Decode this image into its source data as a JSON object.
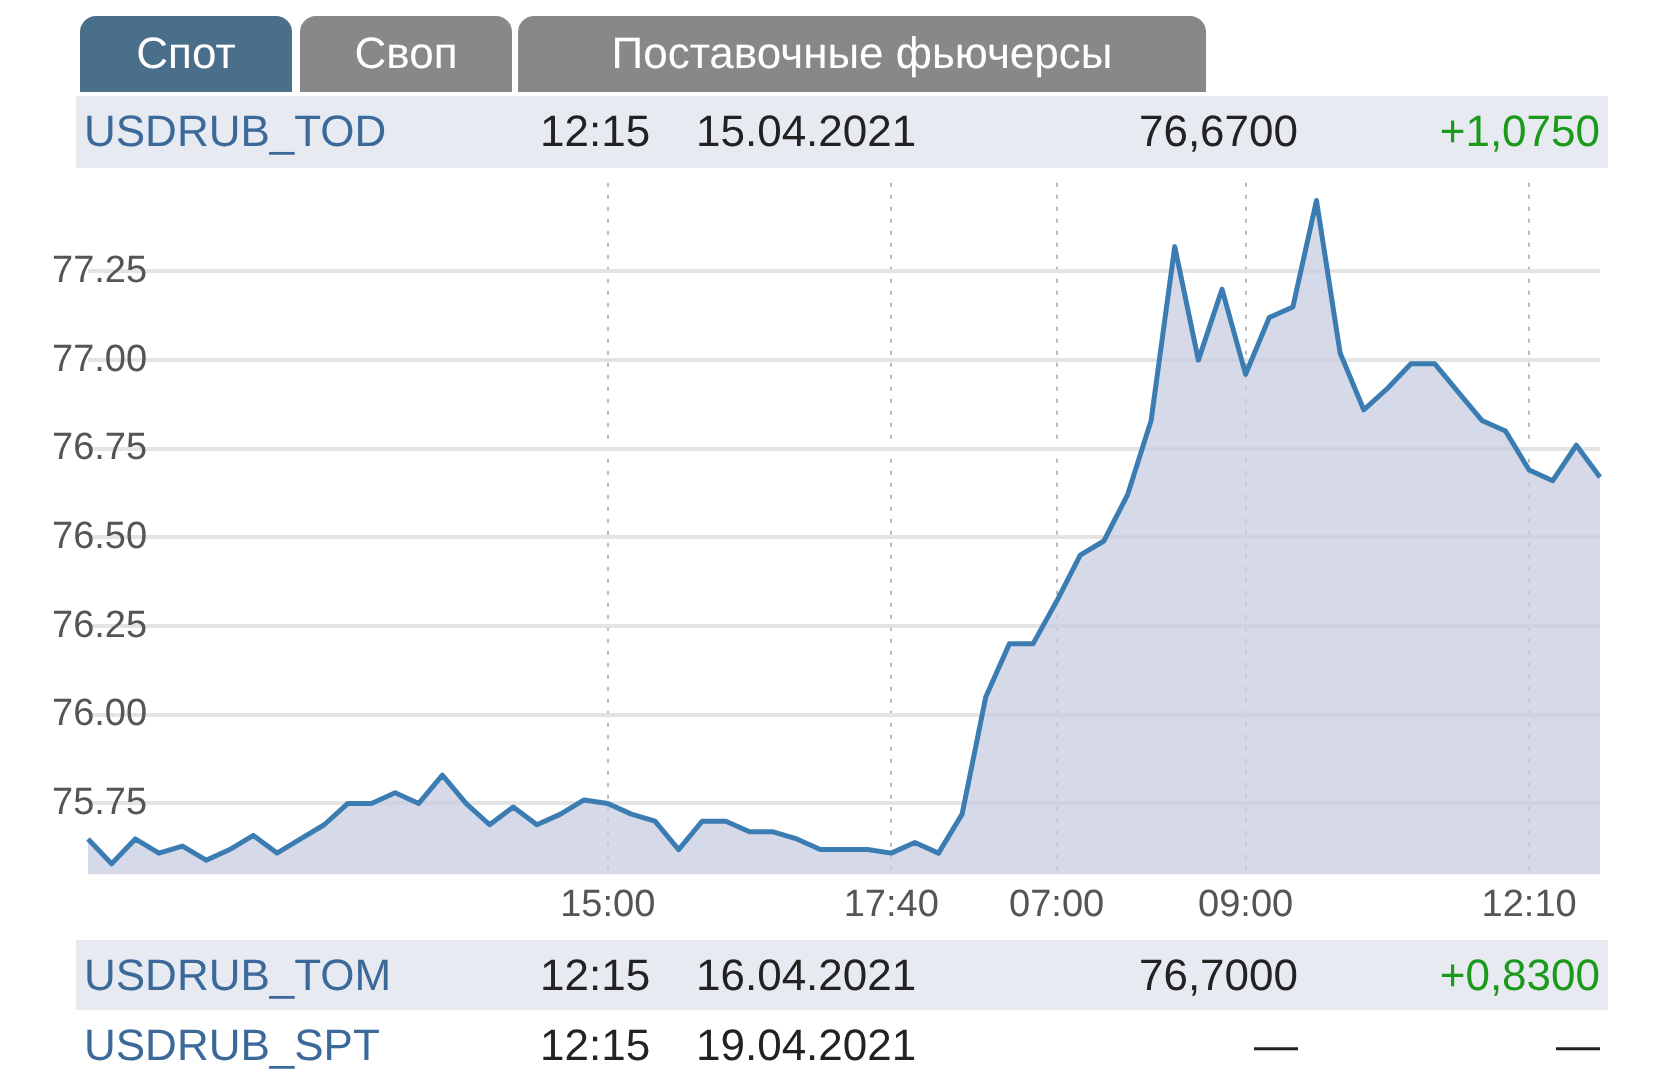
{
  "chart_data": {
    "type": "area",
    "annotations": [
      "Спот",
      "Своп",
      "Поставочные фьючерсы",
      "USDRUB_TOD",
      "12:15",
      "15.04.2021",
      "76,6700",
      "+1,0750",
      "USDRUB_TOM",
      "12:15",
      "16.04.2021",
      "76,7000",
      "+0,8300",
      "USDRUB_SPT",
      "12:15",
      "19.04.2021",
      "—",
      "—"
    ],
    "categories": [
      null,
      null,
      null,
      null,
      null,
      null,
      null,
      null,
      null,
      null,
      null,
      null,
      null,
      null,
      null,
      null,
      null,
      null,
      null,
      null,
      null,
      null,
      "15:00",
      null,
      null,
      null,
      null,
      null,
      null,
      null,
      null,
      null,
      null,
      null,
      "17:40",
      null,
      null,
      null,
      null,
      null,
      null,
      "07:00",
      null,
      null,
      null,
      null,
      null,
      null,
      null,
      "09:00",
      null,
      null,
      null,
      null,
      null,
      null,
      null,
      null,
      null,
      null,
      null,
      "12:10",
      null,
      null,
      null
    ],
    "series": [
      {
        "color": "#3b7db3",
        "values": [
          75.65,
          75.58,
          75.65,
          75.61,
          75.63,
          75.59,
          75.62,
          75.66,
          75.61,
          75.65,
          75.69,
          75.75,
          75.75,
          75.78,
          75.75,
          75.83,
          75.75,
          75.69,
          75.74,
          75.69,
          75.72,
          75.76,
          75.75,
          75.72,
          75.7,
          75.62,
          75.7,
          75.7,
          75.67,
          75.67,
          75.65,
          75.62,
          75.62,
          75.62,
          75.61,
          75.64,
          75.61,
          75.72,
          76.05,
          76.2,
          76.2,
          76.32,
          76.45,
          76.49,
          76.62,
          76.83,
          77.32,
          77.0,
          77.2,
          76.96,
          77.12,
          77.15,
          77.45,
          77.02,
          76.86,
          76.92,
          76.99,
          76.99,
          76.91,
          76.83,
          76.8,
          76.69,
          76.66,
          76.76,
          76.67
        ]
      }
    ],
    "ylim": [
      75.55,
      77.5
    ],
    "yticks": [
      75.75,
      {
        "value": 76,
        "label": "76.00"
      },
      76.25,
      {
        "value": 76.5,
        "label": "76.50"
      },
      76.75,
      {
        "value": 77,
        "label": "77.00"
      },
      77.25
    ],
    "grid": true
  }
}
